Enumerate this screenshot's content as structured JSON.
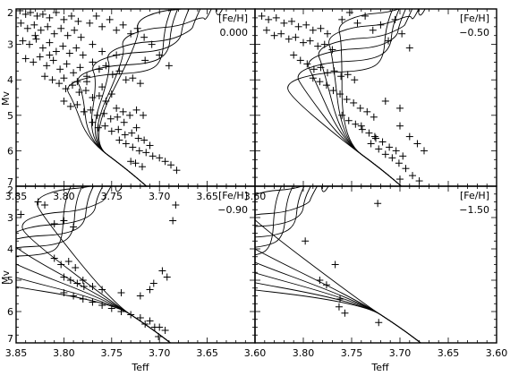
{
  "figure": {
    "x_axis_label": "Teff",
    "y_axis_label": "Mv",
    "label_prefix": "[Fe/H]"
  },
  "chart_data": [
    {
      "type": "scatter",
      "panel": "top-left",
      "feh": "0.000",
      "xlim": [
        3.85,
        3.6
      ],
      "ylim": [
        7,
        2
      ],
      "x_ticks": [
        "3.85",
        "3.80",
        "3.75",
        "3.70",
        "3.65",
        "3.60"
      ],
      "y_ticks": [
        "2",
        "3",
        "4",
        "5",
        "6",
        "7"
      ],
      "isochrone_count": 6,
      "points": [
        [
          3.846,
          2.05
        ],
        [
          3.84,
          2.15
        ],
        [
          3.835,
          2.1
        ],
        [
          3.828,
          2.2
        ],
        [
          3.822,
          2.15
        ],
        [
          3.815,
          2.25
        ],
        [
          3.808,
          2.1
        ],
        [
          3.8,
          2.3
        ],
        [
          3.792,
          2.2
        ],
        [
          3.785,
          2.35
        ],
        [
          3.845,
          2.4
        ],
        [
          3.838,
          2.55
        ],
        [
          3.831,
          2.45
        ],
        [
          3.824,
          2.6
        ],
        [
          3.817,
          2.5
        ],
        [
          3.81,
          2.7
        ],
        [
          3.803,
          2.55
        ],
        [
          3.796,
          2.75
        ],
        [
          3.789,
          2.6
        ],
        [
          3.782,
          2.8
        ],
        [
          3.843,
          2.9
        ],
        [
          3.836,
          3.0
        ],
        [
          3.829,
          2.85
        ],
        [
          3.822,
          3.1
        ],
        [
          3.815,
          2.95
        ],
        [
          3.808,
          3.2
        ],
        [
          3.801,
          3.05
        ],
        [
          3.794,
          3.25
        ],
        [
          3.787,
          3.1
        ],
        [
          3.78,
          3.3
        ],
        [
          3.773,
          2.4
        ],
        [
          3.766,
          2.2
        ],
        [
          3.76,
          2.5
        ],
        [
          3.752,
          2.3
        ],
        [
          3.745,
          2.6
        ],
        [
          3.738,
          2.45
        ],
        [
          3.73,
          2.7
        ],
        [
          3.723,
          2.55
        ],
        [
          3.716,
          2.8
        ],
        [
          3.708,
          3.0
        ],
        [
          3.84,
          3.4
        ],
        [
          3.832,
          3.5
        ],
        [
          3.825,
          3.35
        ],
        [
          3.818,
          3.6
        ],
        [
          3.811,
          3.45
        ],
        [
          3.804,
          3.7
        ],
        [
          3.797,
          3.55
        ],
        [
          3.79,
          3.8
        ],
        [
          3.783,
          3.65
        ],
        [
          3.776,
          3.9
        ],
        [
          3.77,
          3.5
        ],
        [
          3.763,
          3.7
        ],
        [
          3.756,
          3.6
        ],
        [
          3.749,
          3.85
        ],
        [
          3.742,
          3.75
        ],
        [
          3.735,
          4.0
        ],
        [
          3.728,
          3.95
        ],
        [
          3.72,
          4.1
        ],
        [
          3.77,
          3.0
        ],
        [
          3.76,
          3.2
        ],
        [
          3.82,
          3.9
        ],
        [
          3.812,
          4.0
        ],
        [
          3.805,
          4.1
        ],
        [
          3.798,
          4.25
        ],
        [
          3.791,
          4.15
        ],
        [
          3.784,
          4.35
        ],
        [
          3.777,
          4.3
        ],
        [
          3.77,
          4.5
        ],
        [
          3.763,
          4.45
        ],
        [
          3.756,
          4.6
        ],
        [
          3.8,
          4.6
        ],
        [
          3.793,
          4.75
        ],
        [
          3.786,
          4.7
        ],
        [
          3.779,
          4.9
        ],
        [
          3.772,
          4.85
        ],
        [
          3.765,
          5.0
        ],
        [
          3.758,
          4.95
        ],
        [
          3.751,
          5.1
        ],
        [
          3.744,
          5.05
        ],
        [
          3.737,
          5.2
        ],
        [
          3.77,
          5.2
        ],
        [
          3.764,
          5.35
        ],
        [
          3.757,
          5.3
        ],
        [
          3.75,
          5.45
        ],
        [
          3.743,
          5.4
        ],
        [
          3.736,
          5.55
        ],
        [
          3.729,
          5.5
        ],
        [
          3.722,
          5.65
        ],
        [
          3.716,
          5.7
        ],
        [
          3.71,
          5.85
        ],
        [
          3.742,
          5.7
        ],
        [
          3.735,
          5.8
        ],
        [
          3.728,
          5.9
        ],
        [
          3.721,
          6.0
        ],
        [
          3.714,
          6.05
        ],
        [
          3.707,
          6.15
        ],
        [
          3.7,
          6.2
        ],
        [
          3.694,
          6.3
        ],
        [
          3.688,
          6.4
        ],
        [
          3.682,
          6.55
        ],
        [
          3.725,
          6.35
        ],
        [
          3.718,
          6.45
        ],
        [
          3.745,
          4.8
        ],
        [
          3.738,
          4.9
        ],
        [
          3.731,
          5.0
        ],
        [
          3.724,
          4.85
        ],
        [
          3.717,
          5.0
        ],
        [
          3.724,
          5.35
        ],
        [
          3.73,
          6.3
        ],
        [
          3.776,
          4.05
        ],
        [
          3.7,
          3.3
        ],
        [
          3.69,
          3.6
        ],
        [
          3.715,
          3.45
        ],
        [
          3.745,
          3.3
        ],
        [
          3.83,
          2.75
        ],
        [
          3.815,
          3.3
        ],
        [
          3.8,
          3.95
        ],
        [
          3.786,
          4.05
        ],
        [
          3.76,
          4.2
        ],
        [
          3.75,
          4.4
        ]
      ]
    },
    {
      "type": "scatter",
      "panel": "top-right",
      "feh": "−0.50",
      "xlim": [
        3.85,
        3.6
      ],
      "ylim": [
        7,
        2
      ],
      "x_ticks": [],
      "y_ticks": [],
      "isochrone_count": 6,
      "points": [
        [
          3.843,
          2.2
        ],
        [
          3.836,
          2.3
        ],
        [
          3.828,
          2.25
        ],
        [
          3.82,
          2.4
        ],
        [
          3.812,
          2.35
        ],
        [
          3.805,
          2.5
        ],
        [
          3.797,
          2.45
        ],
        [
          3.79,
          2.6
        ],
        [
          3.782,
          2.55
        ],
        [
          3.775,
          2.7
        ],
        [
          3.838,
          2.6
        ],
        [
          3.83,
          2.75
        ],
        [
          3.823,
          2.7
        ],
        [
          3.815,
          2.85
        ],
        [
          3.808,
          2.8
        ],
        [
          3.8,
          2.95
        ],
        [
          3.793,
          2.9
        ],
        [
          3.785,
          3.05
        ],
        [
          3.778,
          3.0
        ],
        [
          3.77,
          3.15
        ],
        [
          3.76,
          2.3
        ],
        [
          3.752,
          2.1
        ],
        [
          3.744,
          2.4
        ],
        [
          3.736,
          2.2
        ],
        [
          3.728,
          2.6
        ],
        [
          3.72,
          2.45
        ],
        [
          3.712,
          2.9
        ],
        [
          3.705,
          2.3
        ],
        [
          3.698,
          2.7
        ],
        [
          3.69,
          3.1
        ],
        [
          3.81,
          3.3
        ],
        [
          3.803,
          3.45
        ],
        [
          3.796,
          3.55
        ],
        [
          3.789,
          3.7
        ],
        [
          3.782,
          3.65
        ],
        [
          3.775,
          3.8
        ],
        [
          3.768,
          3.75
        ],
        [
          3.761,
          3.9
        ],
        [
          3.754,
          3.85
        ],
        [
          3.747,
          4.0
        ],
        [
          3.79,
          3.95
        ],
        [
          3.783,
          4.05
        ],
        [
          3.776,
          4.15
        ],
        [
          3.769,
          4.3
        ],
        [
          3.762,
          4.4
        ],
        [
          3.755,
          4.55
        ],
        [
          3.748,
          4.65
        ],
        [
          3.741,
          4.8
        ],
        [
          3.734,
          4.9
        ],
        [
          3.727,
          5.05
        ],
        [
          3.76,
          5.0
        ],
        [
          3.753,
          5.15
        ],
        [
          3.746,
          5.25
        ],
        [
          3.739,
          5.4
        ],
        [
          3.732,
          5.5
        ],
        [
          3.725,
          5.65
        ],
        [
          3.718,
          5.75
        ],
        [
          3.711,
          5.9
        ],
        [
          3.704,
          6.0
        ],
        [
          3.697,
          6.15
        ],
        [
          3.73,
          5.8
        ],
        [
          3.722,
          5.95
        ],
        [
          3.715,
          6.1
        ],
        [
          3.708,
          6.2
        ],
        [
          3.701,
          6.35
        ],
        [
          3.694,
          6.5
        ],
        [
          3.687,
          6.7
        ],
        [
          3.68,
          6.85
        ],
        [
          3.74,
          5.3
        ],
        [
          3.726,
          5.6
        ],
        [
          3.7,
          5.3
        ],
        [
          3.69,
          5.6
        ],
        [
          3.682,
          5.8
        ],
        [
          3.675,
          6.0
        ],
        [
          3.7,
          4.8
        ],
        [
          3.715,
          4.6
        ],
        [
          3.7,
          6.8
        ]
      ]
    },
    {
      "type": "scatter",
      "panel": "bottom-left",
      "feh": "−0.90",
      "xlim": [
        3.85,
        3.6
      ],
      "ylim": [
        7,
        2
      ],
      "x_ticks": [
        "3.85",
        "3.80",
        "3.75",
        "3.70",
        "3.65",
        "3.60"
      ],
      "y_ticks": [
        "2",
        "3",
        "4",
        "5",
        "6",
        "7"
      ],
      "isochrone_count": 6,
      "points": [
        [
          3.827,
          2.5
        ],
        [
          3.82,
          2.6
        ],
        [
          3.845,
          2.9
        ],
        [
          3.81,
          3.2
        ],
        [
          3.8,
          3.1
        ],
        [
          3.79,
          3.3
        ],
        [
          3.81,
          4.3
        ],
        [
          3.803,
          4.5
        ],
        [
          3.795,
          4.4
        ],
        [
          3.788,
          4.6
        ],
        [
          3.8,
          4.9
        ],
        [
          3.793,
          5.0
        ],
        [
          3.786,
          5.1
        ],
        [
          3.779,
          5.2
        ],
        [
          3.8,
          5.4
        ],
        [
          3.79,
          5.5
        ],
        [
          3.78,
          5.6
        ],
        [
          3.77,
          5.7
        ],
        [
          3.76,
          5.8
        ],
        [
          3.75,
          5.9
        ],
        [
          3.74,
          6.0
        ],
        [
          3.73,
          6.1
        ],
        [
          3.72,
          6.2
        ],
        [
          3.71,
          6.3
        ],
        [
          3.7,
          6.5
        ],
        [
          3.694,
          6.6
        ],
        [
          3.76,
          5.3
        ],
        [
          3.74,
          5.4
        ],
        [
          3.72,
          5.5
        ],
        [
          3.71,
          5.3
        ],
        [
          3.706,
          5.1
        ],
        [
          3.697,
          4.7
        ],
        [
          3.692,
          4.9
        ],
        [
          3.705,
          6.5
        ],
        [
          3.701,
          6.8
        ],
        [
          3.715,
          6.4
        ],
        [
          3.683,
          2.6
        ],
        [
          3.686,
          3.1
        ],
        [
          3.78,
          5.0
        ],
        [
          3.77,
          5.2
        ]
      ]
    },
    {
      "type": "scatter",
      "panel": "bottom-right",
      "feh": "−1.50",
      "xlim": [
        3.85,
        3.6
      ],
      "ylim": [
        7,
        2
      ],
      "x_ticks": [
        "3.80",
        "3.75",
        "3.70",
        "3.65",
        "3.60"
      ],
      "y_ticks": [],
      "isochrone_count": 6,
      "points": [
        [
          3.798,
          3.75
        ],
        [
          3.767,
          4.5
        ],
        [
          3.783,
          5.0
        ],
        [
          3.776,
          5.15
        ],
        [
          3.762,
          5.6
        ],
        [
          3.763,
          5.85
        ],
        [
          3.757,
          6.05
        ],
        [
          3.723,
          2.55
        ],
        [
          3.722,
          6.35
        ]
      ]
    }
  ]
}
